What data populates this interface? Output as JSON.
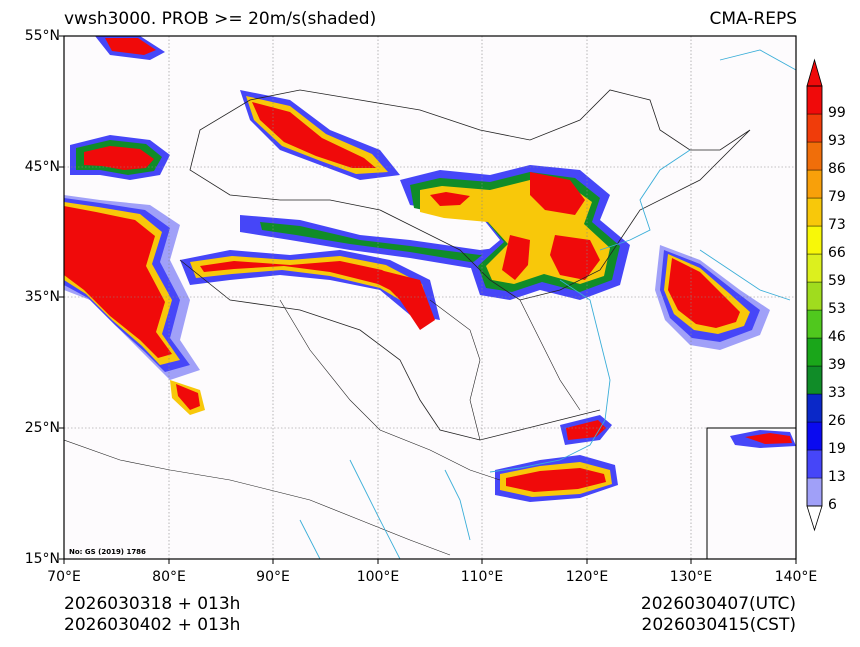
{
  "title": {
    "left": "vwsh3000. PROB >= 20m/s(shaded)",
    "right": "CMA-REPS"
  },
  "axes": {
    "lat_labels": [
      "55°N",
      "45°N",
      "35°N",
      "25°N",
      "15°N"
    ],
    "lon_labels": [
      "70°E",
      "80°E",
      "90°E",
      "100°E",
      "110°E",
      "120°E",
      "130°E",
      "140°E"
    ]
  },
  "colorbar": {
    "levels": [
      "6",
      "13",
      "19",
      "26",
      "33",
      "39",
      "46",
      "53",
      "59",
      "66",
      "73",
      "79",
      "86",
      "93",
      "99"
    ],
    "colors": [
      "#a0a0f8",
      "#4646f8",
      "#0a0af0",
      "#0a28c8",
      "#108c28",
      "#1aa61a",
      "#50c81e",
      "#a0dc1e",
      "#dcf01e",
      "#f8f808",
      "#f8c80a",
      "#f8a00a",
      "#f06e0a",
      "#f03c0a",
      "#f00a0a"
    ]
  },
  "stamp": "No: GS (2019) 1786",
  "footer": {
    "left_line1": "2026030318  +  013h",
    "left_line2": "2026030402  +  013h",
    "right_line1": "2026030407(UTC)",
    "right_line2": "2026030415(CST)"
  },
  "colors": {
    "high": "#f00a0a",
    "mid": "#f8c80a",
    "green": "#108c28",
    "low": "#4646f8",
    "faint": "#a0a0f8",
    "coast": "#3aaed8"
  }
}
